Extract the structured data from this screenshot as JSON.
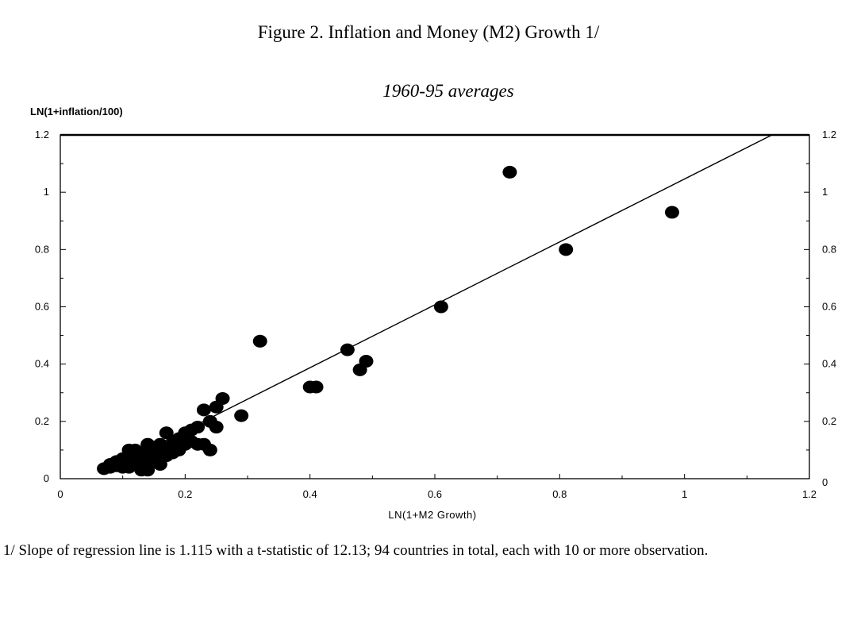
{
  "figure": {
    "title": "Figure 2. Inflation and Money (M2) Growth 1/",
    "subtitle": "1960-95 averages",
    "footnote": "1/ Slope of regression line is 1.115 with a t-statistic of 12.13; 94 countries in total, each with 10 or more observation."
  },
  "chart_data": {
    "type": "scatter",
    "title": "Figure 2. Inflation and Money (M2) Growth 1/",
    "subtitle": "1960-95 averages",
    "xlabel": "LN(1+M2 Growth)",
    "ylabel": "LN(1+inflation/100)",
    "xlim": [
      0,
      1.2
    ],
    "ylim": [
      0,
      1.2
    ],
    "xticks": [
      0,
      0.2,
      0.4,
      0.6,
      0.8,
      1,
      1.2
    ],
    "yticks": [
      0,
      0.2,
      0.4,
      0.6,
      0.8,
      1,
      1.2
    ],
    "xtick_labels": [
      "0",
      "0.2",
      "0.4",
      "0.6",
      "0.8",
      "1",
      "1.2"
    ],
    "ytick_labels": [
      "0",
      "0.2",
      "0.4",
      "0.6",
      "0.8",
      "1",
      "1.2"
    ],
    "grid": false,
    "regression_line": {
      "x": [
        0.07,
        1.14
      ],
      "y": [
        0.025,
        1.2
      ]
    },
    "points": [
      {
        "x": 0.72,
        "y": 1.07
      },
      {
        "x": 0.98,
        "y": 0.93
      },
      {
        "x": 0.81,
        "y": 0.8
      },
      {
        "x": 0.61,
        "y": 0.6
      },
      {
        "x": 0.32,
        "y": 0.48
      },
      {
        "x": 0.46,
        "y": 0.45
      },
      {
        "x": 0.49,
        "y": 0.41
      },
      {
        "x": 0.48,
        "y": 0.38
      },
      {
        "x": 0.4,
        "y": 0.32
      },
      {
        "x": 0.41,
        "y": 0.32
      },
      {
        "x": 0.29,
        "y": 0.22
      },
      {
        "x": 0.26,
        "y": 0.28
      },
      {
        "x": 0.25,
        "y": 0.25
      },
      {
        "x": 0.23,
        "y": 0.24
      },
      {
        "x": 0.24,
        "y": 0.2
      },
      {
        "x": 0.25,
        "y": 0.18
      },
      {
        "x": 0.24,
        "y": 0.1
      },
      {
        "x": 0.22,
        "y": 0.18
      },
      {
        "x": 0.21,
        "y": 0.17
      },
      {
        "x": 0.2,
        "y": 0.16
      },
      {
        "x": 0.17,
        "y": 0.16
      },
      {
        "x": 0.22,
        "y": 0.12
      },
      {
        "x": 0.19,
        "y": 0.14
      },
      {
        "x": 0.18,
        "y": 0.12
      },
      {
        "x": 0.16,
        "y": 0.12
      },
      {
        "x": 0.14,
        "y": 0.12
      },
      {
        "x": 0.2,
        "y": 0.12
      },
      {
        "x": 0.21,
        "y": 0.13
      },
      {
        "x": 0.17,
        "y": 0.1
      },
      {
        "x": 0.18,
        "y": 0.09
      },
      {
        "x": 0.15,
        "y": 0.1
      },
      {
        "x": 0.13,
        "y": 0.09
      },
      {
        "x": 0.16,
        "y": 0.08
      },
      {
        "x": 0.12,
        "y": 0.1
      },
      {
        "x": 0.11,
        "y": 0.1
      },
      {
        "x": 0.14,
        "y": 0.07
      },
      {
        "x": 0.12,
        "y": 0.07
      },
      {
        "x": 0.1,
        "y": 0.07
      },
      {
        "x": 0.11,
        "y": 0.06
      },
      {
        "x": 0.09,
        "y": 0.06
      },
      {
        "x": 0.15,
        "y": 0.06
      },
      {
        "x": 0.16,
        "y": 0.05
      },
      {
        "x": 0.13,
        "y": 0.04
      },
      {
        "x": 0.12,
        "y": 0.05
      },
      {
        "x": 0.1,
        "y": 0.04
      },
      {
        "x": 0.08,
        "y": 0.04
      },
      {
        "x": 0.07,
        "y": 0.035
      },
      {
        "x": 0.09,
        "y": 0.045
      },
      {
        "x": 0.11,
        "y": 0.04
      },
      {
        "x": 0.13,
        "y": 0.03
      },
      {
        "x": 0.14,
        "y": 0.03
      },
      {
        "x": 0.17,
        "y": 0.08
      },
      {
        "x": 0.19,
        "y": 0.1
      },
      {
        "x": 0.23,
        "y": 0.12
      },
      {
        "x": 0.2,
        "y": 0.14
      },
      {
        "x": 0.15,
        "y": 0.11
      },
      {
        "x": 0.13,
        "y": 0.08
      },
      {
        "x": 0.1,
        "y": 0.05
      },
      {
        "x": 0.08,
        "y": 0.05
      },
      {
        "x": 0.12,
        "y": 0.06
      }
    ]
  }
}
